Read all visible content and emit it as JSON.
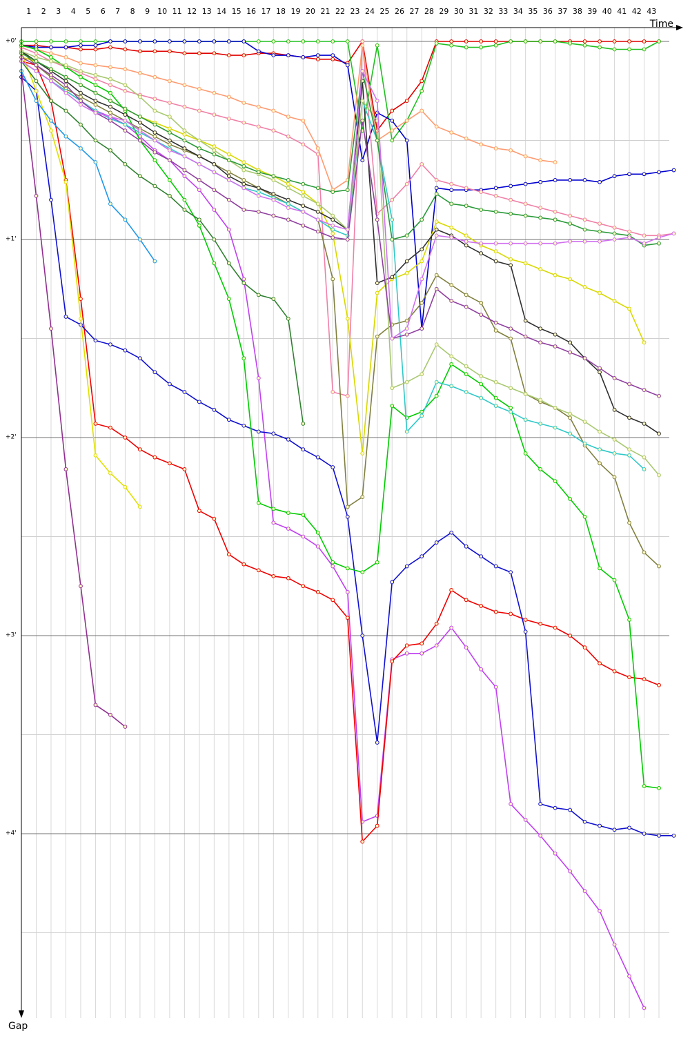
{
  "chart_data": {
    "type": "line",
    "x_label": "Time",
    "y_label": "Gap",
    "xlim": [
      0,
      45
    ],
    "ylim": [
      0,
      4.95
    ],
    "y_inverted": true,
    "xticks": [
      1,
      2,
      3,
      4,
      5,
      6,
      7,
      8,
      9,
      10,
      11,
      12,
      13,
      14,
      15,
      16,
      17,
      18,
      19,
      20,
      21,
      22,
      23,
      24,
      25,
      26,
      27,
      28,
      29,
      30,
      31,
      32,
      33,
      34,
      35,
      36,
      37,
      38,
      39,
      40,
      41,
      42,
      43
    ],
    "yticks": [
      {
        "value": 0,
        "label": "+0'"
      },
      {
        "value": 1,
        "label": "+1'"
      },
      {
        "value": 2,
        "label": "+2'"
      },
      {
        "value": 3,
        "label": "+3'"
      },
      {
        "value": 4,
        "label": "+4'"
      }
    ],
    "minor_yticks": [
      0.5,
      1.5,
      2.5,
      3.5,
      4.5
    ],
    "grid": true,
    "x": [
      0,
      1,
      2,
      3,
      4,
      5,
      6,
      7,
      8,
      9,
      10,
      11,
      12,
      13,
      14,
      15,
      16,
      17,
      18,
      19,
      20,
      21,
      22,
      23,
      24,
      25,
      26,
      27,
      28,
      29,
      30,
      31,
      32,
      33,
      34,
      35,
      36,
      37,
      38,
      39,
      40,
      41,
      42,
      43,
      44
    ],
    "series": [
      {
        "color": "#e00000",
        "values": [
          0.02,
          0.02,
          0.03,
          0.03,
          0.04,
          0.04,
          0.03,
          0.04,
          0.05,
          0.05,
          0.05,
          0.06,
          0.06,
          0.06,
          0.07,
          0.07,
          0.06,
          0.06,
          0.07,
          0.08,
          0.09,
          0.09,
          0.11,
          0,
          0.45,
          0.35,
          0.3,
          0.2,
          0,
          0,
          0,
          0,
          0,
          0,
          0,
          0,
          0,
          0,
          0,
          0,
          0,
          0,
          0,
          0,
          null
        ]
      },
      {
        "color": "#20c020",
        "values": [
          0,
          0,
          0,
          0,
          0,
          0,
          0,
          0,
          0,
          0,
          0,
          0,
          0,
          0,
          0,
          0,
          0,
          0,
          0,
          0,
          0,
          0,
          0,
          0.45,
          0.02,
          0.5,
          0.4,
          0.25,
          0.01,
          0.02,
          0.03,
          0.03,
          0.02,
          0,
          0,
          0,
          0,
          0.01,
          0.02,
          0.03,
          0.04,
          0.04,
          0.04,
          0,
          null
        ]
      },
      {
        "color": "#0000d0",
        "values": [
          0.02,
          0.03,
          0.03,
          0.03,
          0.02,
          0.02,
          0,
          0,
          0,
          0,
          0,
          0,
          0,
          0,
          0,
          0,
          0.05,
          0.07,
          0.07,
          0.08,
          0.07,
          0.07,
          0.12,
          0.6,
          0.36,
          0.4,
          0.5,
          1.45,
          0.74,
          0.75,
          0.75,
          0.75,
          0.74,
          0.73,
          0.72,
          0.71,
          0.7,
          0.7,
          0.7,
          0.71,
          0.68,
          0.67,
          0.67,
          0.66,
          0.65
        ]
      },
      {
        "color": "#f080a8",
        "values": [
          0.03,
          0.06,
          0.1,
          0.13,
          0.16,
          0.19,
          0.22,
          0.25,
          0.27,
          0.29,
          0.31,
          0.33,
          0.35,
          0.37,
          0.39,
          0.41,
          0.43,
          0.45,
          0.48,
          0.52,
          0.57,
          1.77,
          1.79,
          0,
          0.87,
          0.8,
          0.72,
          0.62,
          0.7,
          0.72,
          0.74,
          0.76,
          0.78,
          0.8,
          0.82,
          0.84,
          0.86,
          0.88,
          0.9,
          0.92,
          0.94,
          0.96,
          0.98,
          0.98,
          0.97
        ]
      },
      {
        "color": "#ff9a70",
        "values": [
          0.02,
          0.04,
          0.06,
          0.08,
          0.11,
          0.12,
          0.13,
          0.14,
          0.16,
          0.18,
          0.2,
          0.22,
          0.24,
          0.26,
          0.28,
          0.31,
          0.33,
          0.35,
          0.38,
          0.4,
          0.54,
          0.75,
          0.7,
          0.02,
          0.5,
          0.45,
          0.4,
          0.35,
          0.43,
          0.46,
          0.49,
          0.52,
          0.54,
          0.55,
          0.58,
          0.6,
          0.61,
          null,
          null,
          null,
          null,
          null,
          null,
          null,
          null
        ]
      },
      {
        "color": "#c040f0",
        "values": [
          0.1,
          0.15,
          0.2,
          0.25,
          0.3,
          0.35,
          0.38,
          0.42,
          0.48,
          0.55,
          0.6,
          0.68,
          0.75,
          0.85,
          0.95,
          1.2,
          1.7,
          2.43,
          2.46,
          2.5,
          2.55,
          2.65,
          2.78,
          3.94,
          3.91,
          3.12,
          3.09,
          3.09,
          3.05,
          2.96,
          3.06,
          3.17,
          3.26,
          3.85,
          3.93,
          4.01,
          4.1,
          4.19,
          4.29,
          4.39,
          4.56,
          4.72,
          4.88,
          null,
          null
        ]
      },
      {
        "color": "#f00000",
        "values": [
          0.1,
          0.12,
          0.3,
          0.7,
          1.3,
          1.93,
          1.95,
          2.0,
          2.06,
          2.1,
          2.13,
          2.16,
          2.37,
          2.41,
          2.59,
          2.64,
          2.67,
          2.7,
          2.71,
          2.75,
          2.78,
          2.82,
          2.91,
          4.04,
          3.96,
          3.13,
          3.05,
          3.04,
          2.94,
          2.77,
          2.82,
          2.85,
          2.88,
          2.89,
          2.92,
          2.94,
          2.96,
          3.0,
          3.06,
          3.14,
          3.18,
          3.21,
          3.22,
          3.25,
          null
        ]
      },
      {
        "color": "#1010d0",
        "values": [
          0.18,
          0.25,
          0.8,
          1.39,
          1.43,
          1.51,
          1.53,
          1.56,
          1.6,
          1.67,
          1.73,
          1.77,
          1.82,
          1.86,
          1.91,
          1.94,
          1.97,
          1.98,
          2.01,
          2.06,
          2.1,
          2.15,
          2.4,
          3.0,
          3.54,
          2.73,
          2.65,
          2.6,
          2.53,
          2.48,
          2.55,
          2.6,
          2.65,
          2.68,
          2.98,
          3.85,
          3.87,
          3.88,
          3.94,
          3.96,
          3.98,
          3.97,
          4.0,
          4.01,
          4.01
        ]
      },
      {
        "color": "#00cc00",
        "values": [
          0.02,
          0.04,
          0.08,
          0.13,
          0.18,
          0.22,
          0.26,
          0.35,
          0.5,
          0.6,
          0.7,
          0.8,
          0.93,
          1.12,
          1.3,
          1.6,
          2.33,
          2.36,
          2.38,
          2.39,
          2.48,
          2.63,
          2.66,
          2.68,
          2.63,
          1.84,
          1.9,
          1.87,
          1.79,
          1.63,
          1.68,
          1.73,
          1.8,
          1.85,
          2.08,
          2.16,
          2.22,
          2.31,
          2.4,
          2.66,
          2.72,
          2.92,
          3.76,
          3.77,
          null
        ]
      },
      {
        "color": "#903090",
        "values": [
          0.15,
          0.78,
          1.45,
          2.16,
          2.75,
          3.35,
          3.4,
          3.46,
          null,
          null,
          null,
          null,
          null,
          null,
          null,
          null,
          null,
          null,
          null,
          null,
          null,
          null,
          null,
          null,
          null,
          null,
          null,
          null,
          null,
          null,
          null,
          null,
          null,
          null,
          null,
          null,
          null,
          null,
          null,
          null,
          null,
          null,
          null,
          null,
          null
        ]
      },
      {
        "color": "#e0e000",
        "values": [
          0.05,
          0.25,
          0.45,
          0.71,
          1.4,
          2.09,
          2.18,
          2.25,
          2.35,
          null,
          null,
          null,
          null,
          null,
          null,
          null,
          null,
          null,
          null,
          null,
          null,
          null,
          null,
          null,
          null,
          null,
          null,
          null,
          null,
          null,
          null,
          null,
          null,
          null,
          null,
          null,
          null,
          null,
          null,
          null,
          null,
          null,
          null,
          null,
          null
        ]
      },
      {
        "color": "#2098e8",
        "values": [
          0.15,
          0.3,
          0.4,
          0.48,
          0.54,
          0.61,
          0.82,
          0.9,
          1.0,
          1.11,
          null,
          null,
          null,
          null,
          null,
          null,
          null,
          null,
          null,
          null,
          null,
          null,
          null,
          null,
          null,
          null,
          null,
          null,
          null,
          null,
          null,
          null,
          null,
          null,
          null,
          null,
          null,
          null,
          null,
          null,
          null,
          null,
          null,
          null,
          null
        ]
      },
      {
        "color": "#d8d800",
        "values": [
          0.08,
          0.1,
          0.14,
          0.18,
          0.22,
          0.26,
          0.3,
          0.34,
          0.38,
          0.41,
          0.44,
          0.47,
          0.5,
          0.53,
          0.57,
          0.61,
          0.65,
          0.68,
          0.72,
          0.76,
          0.82,
          0.97,
          1.4,
          2.08,
          1.27,
          1.2,
          1.17,
          1.11,
          0.91,
          0.94,
          0.98,
          1.03,
          1.06,
          1.1,
          1.12,
          1.15,
          1.18,
          1.2,
          1.24,
          1.27,
          1.31,
          1.35,
          1.52,
          null,
          null
        ]
      },
      {
        "color": "#808040",
        "values": [
          0.05,
          0.12,
          0.18,
          0.24,
          0.28,
          0.32,
          0.36,
          0.4,
          0.44,
          0.48,
          0.52,
          0.55,
          0.58,
          0.62,
          0.66,
          0.7,
          0.74,
          0.78,
          0.82,
          0.86,
          0.9,
          1.2,
          2.35,
          2.3,
          1.49,
          1.43,
          1.41,
          1.32,
          1.18,
          1.23,
          1.28,
          1.32,
          1.46,
          1.5,
          1.78,
          1.82,
          1.85,
          1.9,
          2.04,
          2.13,
          2.2,
          2.43,
          2.58,
          2.65,
          null
        ]
      },
      {
        "color": "#303030",
        "values": [
          0.05,
          0.1,
          0.15,
          0.2,
          0.26,
          0.3,
          0.33,
          0.37,
          0.41,
          0.46,
          0.5,
          0.54,
          0.58,
          0.62,
          0.68,
          0.72,
          0.74,
          0.77,
          0.8,
          0.83,
          0.86,
          0.9,
          0.95,
          0.2,
          1.22,
          1.19,
          1.11,
          1.05,
          0.95,
          0.98,
          1.03,
          1.07,
          1.11,
          1.13,
          1.41,
          1.45,
          1.48,
          1.52,
          1.6,
          1.67,
          1.86,
          1.9,
          1.93,
          1.98,
          null
        ]
      },
      {
        "color": "#30c8c8",
        "values": [
          0.1,
          0.15,
          0.2,
          0.25,
          0.3,
          0.35,
          0.39,
          0.42,
          0.46,
          0.5,
          0.54,
          0.58,
          0.62,
          0.66,
          0.7,
          0.74,
          0.76,
          0.79,
          0.82,
          0.86,
          0.9,
          0.95,
          0.98,
          0.3,
          0.5,
          0.9,
          1.97,
          1.89,
          1.72,
          1.74,
          1.77,
          1.8,
          1.84,
          1.87,
          1.91,
          1.93,
          1.95,
          1.98,
          2.03,
          2.06,
          2.08,
          2.09,
          2.16,
          null,
          null
        ]
      },
      {
        "color": "#a8c870",
        "values": [
          0.05,
          0.08,
          0.1,
          0.12,
          0.15,
          0.17,
          0.19,
          0.22,
          0.28,
          0.35,
          0.38,
          0.45,
          0.5,
          0.55,
          0.6,
          0.65,
          0.67,
          0.7,
          0.74,
          0.78,
          0.82,
          0.88,
          0.95,
          0.3,
          0.4,
          1.75,
          1.72,
          1.68,
          1.53,
          1.59,
          1.64,
          1.69,
          1.72,
          1.75,
          1.78,
          1.81,
          1.85,
          1.88,
          1.92,
          1.97,
          2.01,
          2.06,
          2.1,
          2.19,
          null
        ]
      },
      {
        "color": "#9040a0",
        "values": [
          0.08,
          0.12,
          0.17,
          0.22,
          0.3,
          0.36,
          0.4,
          0.45,
          0.5,
          0.56,
          0.6,
          0.65,
          0.7,
          0.75,
          0.8,
          0.85,
          0.86,
          0.88,
          0.9,
          0.93,
          0.96,
          0.99,
          1.0,
          0.4,
          0.9,
          1.5,
          1.48,
          1.45,
          1.25,
          1.31,
          1.34,
          1.38,
          1.42,
          1.45,
          1.49,
          1.52,
          1.54,
          1.57,
          1.6,
          1.65,
          1.7,
          1.73,
          1.76,
          1.79,
          null
        ]
      },
      {
        "color": "#2a9a3a",
        "values": [
          0.06,
          0.1,
          0.14,
          0.18,
          0.22,
          0.26,
          0.3,
          0.34,
          0.38,
          0.42,
          0.46,
          0.5,
          0.54,
          0.57,
          0.6,
          0.63,
          0.66,
          0.68,
          0.7,
          0.72,
          0.74,
          0.76,
          0.75,
          0.15,
          0.5,
          1.0,
          0.98,
          0.9,
          0.77,
          0.82,
          0.83,
          0.85,
          0.86,
          0.87,
          0.88,
          0.89,
          0.9,
          0.92,
          0.95,
          0.96,
          0.97,
          0.98,
          1.03,
          1.02,
          null
        ]
      },
      {
        "color": "#308030",
        "values": [
          0.1,
          0.2,
          0.3,
          0.35,
          0.42,
          0.5,
          0.55,
          0.62,
          0.68,
          0.73,
          0.78,
          0.85,
          0.9,
          1.0,
          1.12,
          1.22,
          1.28,
          1.3,
          1.4,
          1.93,
          null,
          null,
          null,
          null,
          null,
          null,
          null,
          null,
          null,
          null,
          null,
          null,
          null,
          null,
          null,
          null,
          null,
          null,
          null,
          null,
          null,
          null,
          null,
          null,
          null
        ]
      },
      {
        "color": "#d070f0",
        "values": [
          0.1,
          0.15,
          0.2,
          0.26,
          0.32,
          0.36,
          0.38,
          0.4,
          0.45,
          0.5,
          0.55,
          0.58,
          0.62,
          0.66,
          0.7,
          0.74,
          0.78,
          0.8,
          0.84,
          0.86,
          0.9,
          0.93,
          0.95,
          0.15,
          0.3,
          1.5,
          1.45,
          1.2,
          0.98,
          0.99,
          1.01,
          1.02,
          1.02,
          1.02,
          1.02,
          1.02,
          1.02,
          1.01,
          1.01,
          1.01,
          1.0,
          0.99,
          1.02,
          0.99,
          0.97
        ]
      }
    ]
  }
}
